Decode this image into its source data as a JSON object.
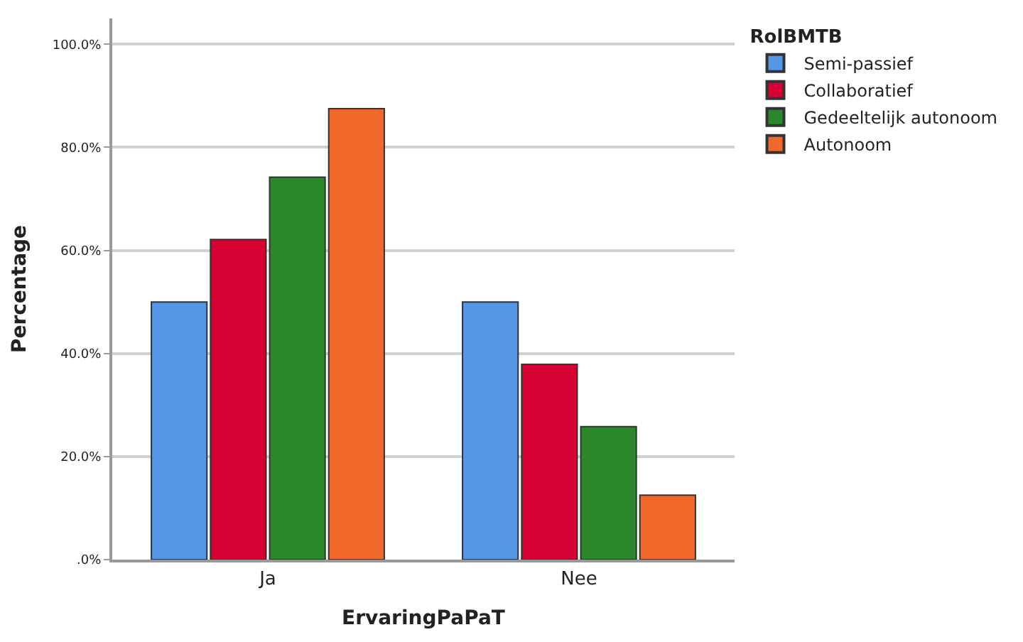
{
  "chart_data": {
    "type": "bar",
    "xlabel": "ErvaringPaPaT",
    "ylabel": "Percentage",
    "legend_title": "RolBMTB",
    "categories": [
      "Ja",
      "Nee"
    ],
    "series": [
      {
        "name": "Semi-passief",
        "color": "#5596e6",
        "values": [
          50.0,
          50.0
        ]
      },
      {
        "name": "Collaboratief",
        "color": "#d70033",
        "values": [
          62.1,
          37.9
        ]
      },
      {
        "name": "Gedeeltelijk autonoom",
        "color": "#2a882a",
        "values": [
          74.2,
          25.8
        ]
      },
      {
        "name": "Autonoom",
        "color": "#f0692b",
        "values": [
          87.5,
          12.5
        ]
      }
    ],
    "ylim": [
      0,
      105
    ],
    "yticks": [
      {
        "value": 0,
        "label": ".0%"
      },
      {
        "value": 20,
        "label": "20.0%"
      },
      {
        "value": 40,
        "label": "40.0%"
      },
      {
        "value": 60,
        "label": "60.0%"
      },
      {
        "value": 80,
        "label": "80.0%"
      },
      {
        "value": 100,
        "label": "100.0%"
      }
    ],
    "grid": "y",
    "legend": "top right"
  }
}
